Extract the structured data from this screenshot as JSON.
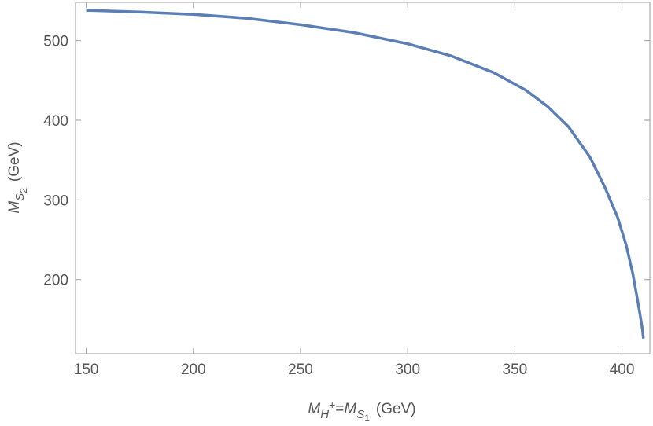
{
  "chart_data": {
    "type": "line",
    "title": "",
    "xlabel": {
      "symbol": "M",
      "sub1": "H",
      "sup1": "+",
      "equals": "=",
      "symbol2": "M",
      "sub2": "S",
      "sub2b": "1",
      "unit": "(GeV)"
    },
    "ylabel": {
      "symbol": "M",
      "sub": "S",
      "subsub": "2",
      "unit": "(GeV)"
    },
    "xlim": [
      145,
      413
    ],
    "ylim": [
      107,
      548
    ],
    "xticks": [
      150,
      200,
      250,
      300,
      350,
      400
    ],
    "yticks": [
      200,
      300,
      400,
      500
    ],
    "grid": false,
    "series": [
      {
        "color": "#5b7fb4",
        "x": [
          150,
          175,
          200,
          225,
          250,
          275,
          300,
          320,
          340,
          355,
          365,
          375,
          385,
          392,
          398,
          402,
          405,
          407,
          408.5,
          409.5,
          410
        ],
        "y": [
          538,
          536,
          533,
          528,
          520,
          510,
          496,
          481,
          460,
          438,
          418,
          392,
          354,
          316,
          278,
          243,
          208,
          178,
          155,
          138,
          126
        ]
      }
    ]
  }
}
